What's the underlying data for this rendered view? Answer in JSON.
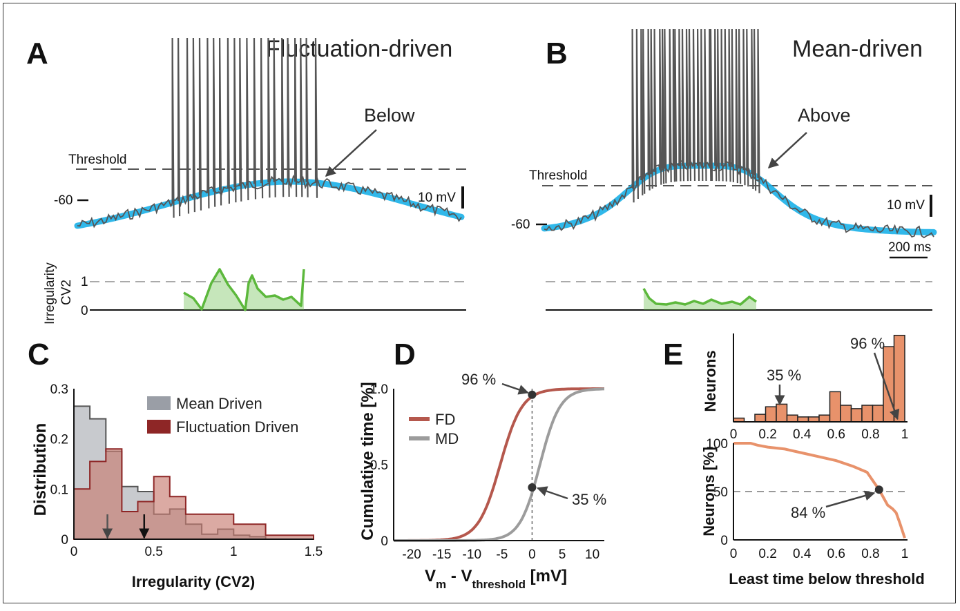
{
  "panels": {
    "A": {
      "label": "A",
      "title": "Fluctuation-driven",
      "threshold_label": "Threshold",
      "vm_tick": "-60",
      "scale_label": "10 mV",
      "annotation": "Below"
    },
    "B": {
      "label": "B",
      "title": "Mean-driven",
      "threshold_label": "Threshold",
      "vm_tick": "-60",
      "scale_label": "10 mV",
      "time_scale": "200 ms",
      "annotation": "Above"
    },
    "irregularity": {
      "ylabel_1": "Irregularity",
      "ylabel_2": "CV2",
      "tick_1": "1",
      "tick_0": "0"
    },
    "C": {
      "label": "C"
    },
    "D": {
      "label": "D"
    },
    "E": {
      "label": "E"
    }
  },
  "colors": {
    "trace": "#555555",
    "fit": "#1ab0e8",
    "cv2": "#5cb83c",
    "md_hist": "#9a9ea6",
    "fd_hist": "#8e2626",
    "fd_fill": "#c87d72",
    "fd_line": "#b5584d",
    "md_line": "#9c9c9c",
    "neurons": "#e8926b"
  },
  "chart_data": [
    {
      "panel": "C",
      "type": "histogram",
      "xlabel": "Irregularity (CV2)",
      "ylabel": "Distribution",
      "xlim": [
        0,
        1.5
      ],
      "ylim": [
        0,
        0.3
      ],
      "xticks": [
        "0",
        "0.5",
        "1",
        "1.5"
      ],
      "yticks": [
        "0",
        "0.1",
        "0.2",
        "0.3"
      ],
      "bin_edges": [
        0,
        0.1,
        0.2,
        0.3,
        0.4,
        0.5,
        0.6,
        0.7,
        0.8,
        0.9,
        1.0,
        1.1,
        1.2,
        1.3,
        1.4,
        1.5
      ],
      "series": [
        {
          "name": "Mean Driven",
          "values": [
            0.265,
            0.24,
            0.175,
            0.105,
            0.095,
            0.05,
            0.06,
            0.03,
            0.01,
            0.02,
            0.008,
            0.005,
            0,
            0,
            0
          ]
        },
        {
          "name": "Fluctuation Driven",
          "values": [
            0.1,
            0.155,
            0.18,
            0.055,
            0.075,
            0.125,
            0.085,
            0.05,
            0.05,
            0.05,
            0.03,
            0.03,
            0.008,
            0.008,
            0.008
          ]
        }
      ],
      "arrows": [
        0.21,
        0.44
      ],
      "legend": "top-right"
    },
    {
      "panel": "D",
      "type": "line",
      "xlabel_main": "V",
      "xlabel_sub1": "m",
      "xlabel_mid": " - V",
      "xlabel_sub2": "threshold",
      "xlabel_unit": " [mV]",
      "ylabel": "Cumulative time [%]",
      "xlim": [
        -23,
        12
      ],
      "ylim": [
        0,
        1
      ],
      "xticks": [
        "-20",
        "-15",
        "-10",
        "-5",
        "0",
        "5",
        "10"
      ],
      "yticks": [
        "0",
        "0.5",
        "1.0"
      ],
      "series": [
        {
          "name": "FD",
          "center": -5.3,
          "slope": 0.55
        },
        {
          "name": "MD",
          "center": 1.3,
          "slope": 0.6
        }
      ],
      "markers": [
        {
          "x": 0,
          "y": 0.96,
          "label": "96 %"
        },
        {
          "x": 0,
          "y": 0.35,
          "label": "35 %"
        }
      ],
      "legend": "middle-left"
    },
    {
      "panel": "E-top",
      "type": "bar",
      "ylabel": "Neurons",
      "xlim": [
        0,
        1
      ],
      "xticks": [
        "0",
        "0.2",
        "0.4",
        "0.6",
        "0.8",
        "1"
      ],
      "bin_edges": [
        0,
        0.0625,
        0.125,
        0.1875,
        0.25,
        0.3125,
        0.375,
        0.4375,
        0.5,
        0.5625,
        0.625,
        0.6875,
        0.75,
        0.8125,
        0.875,
        0.9375,
        1.0
      ],
      "values": [
        1,
        0,
        2,
        4,
        4.7,
        1.8,
        1.3,
        1.3,
        1.8,
        8,
        4.4,
        3.5,
        4.4,
        4.4,
        20,
        23
      ],
      "markers": [
        {
          "x": 0.27,
          "label": "35 %"
        },
        {
          "x": 0.97,
          "label": "96 %"
        }
      ]
    },
    {
      "panel": "E-bottom",
      "type": "line",
      "xlabel": "Least time below threshold",
      "ylabel": "Neurons [%]",
      "xlim": [
        0,
        1
      ],
      "ylim": [
        0,
        100
      ],
      "xticks": [
        "0",
        "0.2",
        "0.4",
        "0.6",
        "0.8",
        "1"
      ],
      "yticks": [
        "0",
        "50",
        "100"
      ],
      "x": [
        0,
        0.1,
        0.14,
        0.2,
        0.3,
        0.4,
        0.5,
        0.6,
        0.7,
        0.78,
        0.85,
        0.9,
        0.93,
        0.95,
        0.97,
        1.0
      ],
      "y": [
        100,
        100,
        98,
        96,
        94,
        90,
        86,
        82,
        76,
        70,
        52,
        36,
        32,
        28,
        18,
        2
      ],
      "marker": {
        "x": 0.85,
        "y": 52,
        "label": "84 %"
      },
      "hline": 50
    }
  ]
}
